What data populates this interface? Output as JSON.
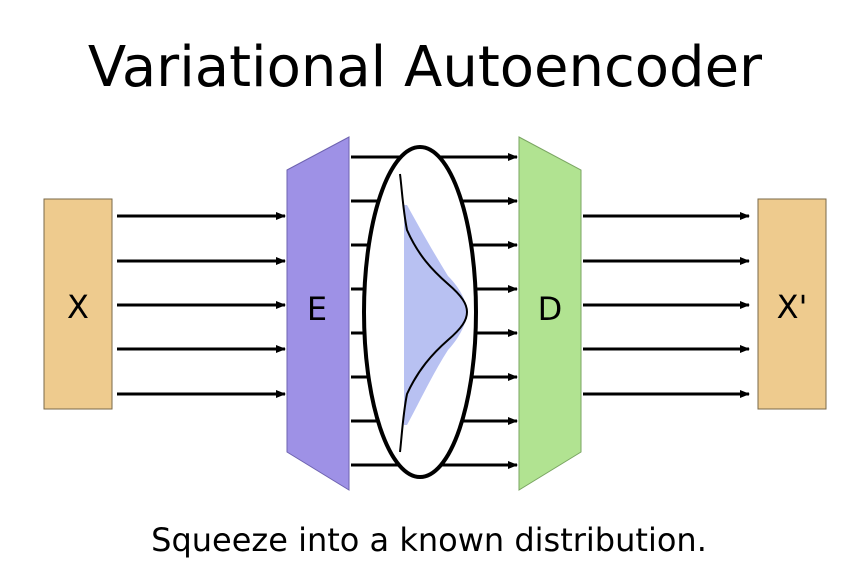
{
  "title": "Variational Autoencoder",
  "caption": "Squeeze into a known distribution.",
  "input": {
    "label": "X",
    "color": "#eecb8e"
  },
  "encoder": {
    "label": "E",
    "color": "#9e91e6"
  },
  "decoder": {
    "label": "D",
    "color": "#b1e391"
  },
  "output": {
    "label": "X'",
    "color": "#eecb8e"
  },
  "latent": {
    "curve_fill": "#b8c1f2"
  }
}
